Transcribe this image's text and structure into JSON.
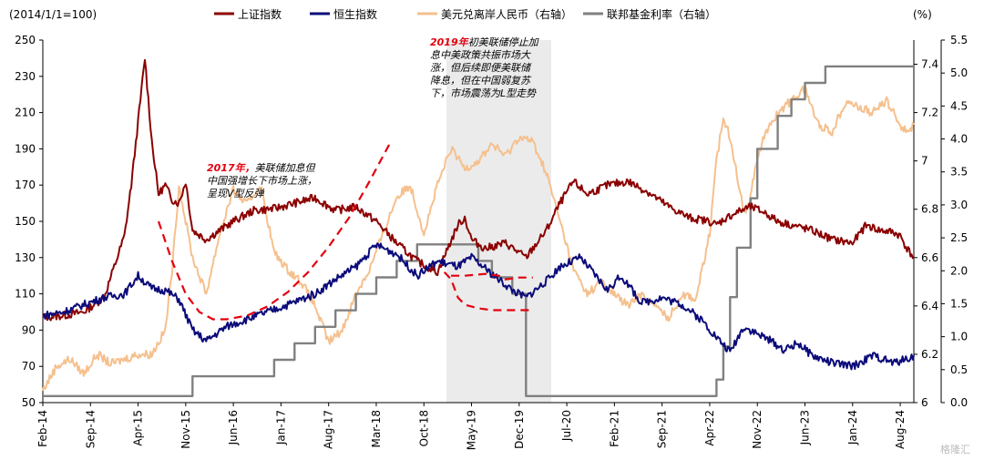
{
  "chart_data": {
    "type": "line",
    "left_unit": "(2014/1/1=100)",
    "right_unit": "(%)",
    "x_ticks": [
      "Feb-14",
      "Sep-14",
      "Apr-15",
      "Nov-15",
      "Jun-16",
      "Jan-17",
      "Aug-17",
      "Mar-18",
      "Oct-18",
      "May-19",
      "Dec-19",
      "Jul-20",
      "Feb-21",
      "Sep-21",
      "Apr-22",
      "Nov-22",
      "Jun-23",
      "Jan-24",
      "Aug-24"
    ],
    "y_left": {
      "min": 50,
      "max": 250,
      "ticks": [
        50,
        70,
        90,
        110,
        130,
        150,
        170,
        190,
        210,
        230,
        250
      ]
    },
    "y_right_fx": {
      "min": 6,
      "max": 7.5,
      "ticks": [
        6,
        6.2,
        6.4,
        6.6,
        6.8,
        7,
        7.2,
        7.4
      ]
    },
    "y_right_rate": {
      "min": 0,
      "max": 5.5,
      "ticks": [
        0.0,
        0.5,
        1.0,
        1.5,
        2.0,
        2.5,
        3.0,
        3.5,
        4.0,
        4.5,
        5.0,
        5.5
      ]
    },
    "legend": [
      {
        "label": "上证指数",
        "color": "#8b0000"
      },
      {
        "label": "恒生指数",
        "color": "#0b0b7a"
      },
      {
        "label": "美元兑离岸人民币（右轴）",
        "color": "#f5c08e"
      },
      {
        "label": "联邦基金利率（右轴）",
        "color": "#808080"
      }
    ],
    "annotations": [
      {
        "year": "2017年，",
        "lines": [
          "美联储加息但",
          "中国强增长下市场上涨，",
          "呈现V型反弹"
        ]
      },
      {
        "year": "2019年",
        "lines": [
          "初美联储停止加",
          "息中美政策共振市场大",
          "涨，但后续即便美联储",
          "降息，但在中国弱复苏",
          "下，市场震荡为L型走势"
        ]
      }
    ],
    "watermark": "格隆汇",
    "x_months": [
      0,
      7,
      14,
      21,
      28,
      35,
      42,
      49,
      56,
      63,
      70,
      77,
      84,
      91,
      98,
      105,
      112,
      119,
      126,
      128
    ],
    "series": [
      {
        "name": "上证指数",
        "axis": "left",
        "color": "#8b0000",
        "x": [
          0,
          3,
          6,
          9,
          12,
          13,
          14,
          15,
          16,
          17,
          18,
          19,
          20,
          21,
          22,
          24,
          26,
          28,
          31,
          34,
          37,
          40,
          43,
          46,
          49,
          52,
          55,
          58,
          61,
          62,
          63,
          65,
          68,
          71,
          74,
          76,
          78,
          80,
          83,
          86,
          89,
          92,
          95,
          98,
          99,
          100,
          102,
          104,
          106,
          108,
          110,
          113,
          116,
          119,
          121,
          123,
          125,
          126,
          127,
          128
        ],
        "y": [
          97,
          98,
          100,
          108,
          142,
          170,
          205,
          240,
          195,
          165,
          170,
          162,
          160,
          172,
          145,
          140,
          145,
          150,
          156,
          157,
          160,
          163,
          156,
          158,
          150,
          138,
          128,
          122,
          148,
          152,
          140,
          135,
          138,
          130,
          145,
          160,
          172,
          165,
          170,
          172,
          166,
          158,
          152,
          150,
          148,
          151,
          155,
          158,
          155,
          150,
          148,
          145,
          140,
          138,
          148,
          145,
          144,
          142,
          135,
          130
        ]
      },
      {
        "name": "恒生指数",
        "axis": "left",
        "color": "#0b0b7a",
        "x": [
          0,
          3,
          6,
          9,
          12,
          14,
          16,
          18,
          20,
          22,
          24,
          27,
          30,
          33,
          36,
          40,
          43,
          46,
          49,
          52,
          55,
          58,
          61,
          63,
          65,
          67,
          69,
          71,
          74,
          76,
          79,
          83,
          85,
          88,
          91,
          94,
          97,
          99,
          101,
          102,
          103,
          105,
          107,
          109,
          111,
          113,
          116,
          119,
          122,
          125,
          127,
          128
        ],
        "y": [
          98,
          100,
          104,
          108,
          110,
          120,
          113,
          112,
          107,
          90,
          84,
          92,
          96,
          100,
          104,
          110,
          118,
          125,
          137,
          132,
          120,
          128,
          125,
          130,
          124,
          118,
          112,
          108,
          117,
          125,
          130,
          112,
          120,
          105,
          108,
          104,
          95,
          86,
          78,
          85,
          92,
          88,
          84,
          79,
          83,
          76,
          72,
          70,
          76,
          72,
          74,
          76
        ]
      },
      {
        "name": "美元兑离岸人民币（右轴）",
        "axis": "right_fx",
        "color": "#f5c08e",
        "x": [
          0,
          2,
          4,
          6,
          8,
          10,
          12,
          14,
          16,
          18,
          19,
          20,
          22,
          24,
          26,
          28,
          30,
          32,
          34,
          36,
          38,
          40,
          42,
          44,
          46,
          48,
          50,
          52,
          54,
          55,
          56,
          58,
          60,
          62,
          64,
          66,
          68,
          70,
          72,
          74,
          76,
          78,
          80,
          82,
          84,
          86,
          88,
          90,
          92,
          94,
          96,
          98,
          99,
          100,
          101,
          102,
          103,
          104,
          105,
          106,
          108,
          110,
          112,
          114,
          116,
          118,
          120,
          122,
          124,
          126,
          127,
          128
        ],
        "y": [
          6.05,
          6.15,
          6.18,
          6.12,
          6.2,
          6.16,
          6.18,
          6.2,
          6.2,
          6.3,
          6.55,
          6.9,
          6.6,
          6.45,
          6.7,
          6.88,
          6.82,
          6.9,
          6.62,
          6.55,
          6.5,
          6.4,
          6.25,
          6.3,
          6.45,
          6.55,
          6.7,
          6.85,
          6.9,
          6.8,
          6.7,
          6.9,
          7.05,
          6.97,
          7.0,
          7.07,
          7.02,
          7.1,
          7.08,
          6.95,
          6.75,
          6.55,
          6.45,
          6.5,
          6.45,
          6.4,
          6.45,
          6.4,
          6.35,
          6.45,
          6.43,
          6.7,
          7.0,
          7.18,
          7.1,
          6.95,
          6.78,
          6.85,
          7.02,
          7.1,
          7.2,
          7.25,
          7.3,
          7.15,
          7.12,
          7.25,
          7.22,
          7.2,
          7.25,
          7.15,
          7.12,
          7.15
        ]
      },
      {
        "name": "联邦基金利率（右轴）",
        "axis": "right_rate",
        "color": "#808080",
        "x": [
          0,
          22,
          22,
          34,
          34,
          37,
          37,
          40,
          40,
          43,
          43,
          46,
          46,
          49,
          49,
          52,
          52,
          55,
          55,
          58,
          58,
          64,
          64,
          66,
          66,
          69,
          69,
          71,
          71,
          73,
          73,
          99,
          99,
          100,
          100,
          101,
          101,
          102,
          102,
          104,
          104,
          105,
          105,
          108,
          108,
          110,
          110,
          112,
          112,
          115,
          115,
          128
        ],
        "y": [
          0.1,
          0.1,
          0.4,
          0.4,
          0.65,
          0.65,
          0.9,
          0.9,
          1.15,
          1.15,
          1.4,
          1.4,
          1.65,
          1.65,
          1.9,
          1.9,
          2.15,
          2.15,
          2.4,
          2.4,
          2.4,
          2.4,
          2.15,
          2.15,
          1.9,
          1.9,
          1.65,
          1.65,
          0.1,
          0.1,
          0.1,
          0.1,
          0.35,
          0.35,
          0.85,
          0.85,
          1.6,
          1.6,
          2.35,
          2.35,
          3.1,
          3.1,
          3.85,
          3.85,
          4.35,
          4.35,
          4.6,
          4.6,
          4.85,
          4.85,
          5.1,
          5.1
        ]
      }
    ],
    "dashed_curves": [
      {
        "color": "#e3000f",
        "x": [
          17,
          19,
          21,
          23,
          25,
          27,
          30,
          33,
          36,
          39,
          42,
          45,
          48,
          51
        ],
        "y": [
          150,
          128,
          110,
          100,
          96,
          96,
          98,
          103,
          111,
          122,
          136,
          152,
          172,
          193
        ]
      },
      {
        "color": "#e3000f",
        "x": [
          59,
          60,
          61,
          62,
          64,
          66,
          68,
          70,
          72
        ],
        "y": [
          122,
          118,
          108,
          104,
          102,
          101,
          101,
          101,
          101
        ]
      },
      {
        "color": "#e3000f",
        "x": [
          60,
          62,
          65,
          67,
          68,
          70,
          72
        ],
        "y": [
          120,
          120,
          121,
          120,
          118,
          119,
          119
        ]
      }
    ]
  }
}
